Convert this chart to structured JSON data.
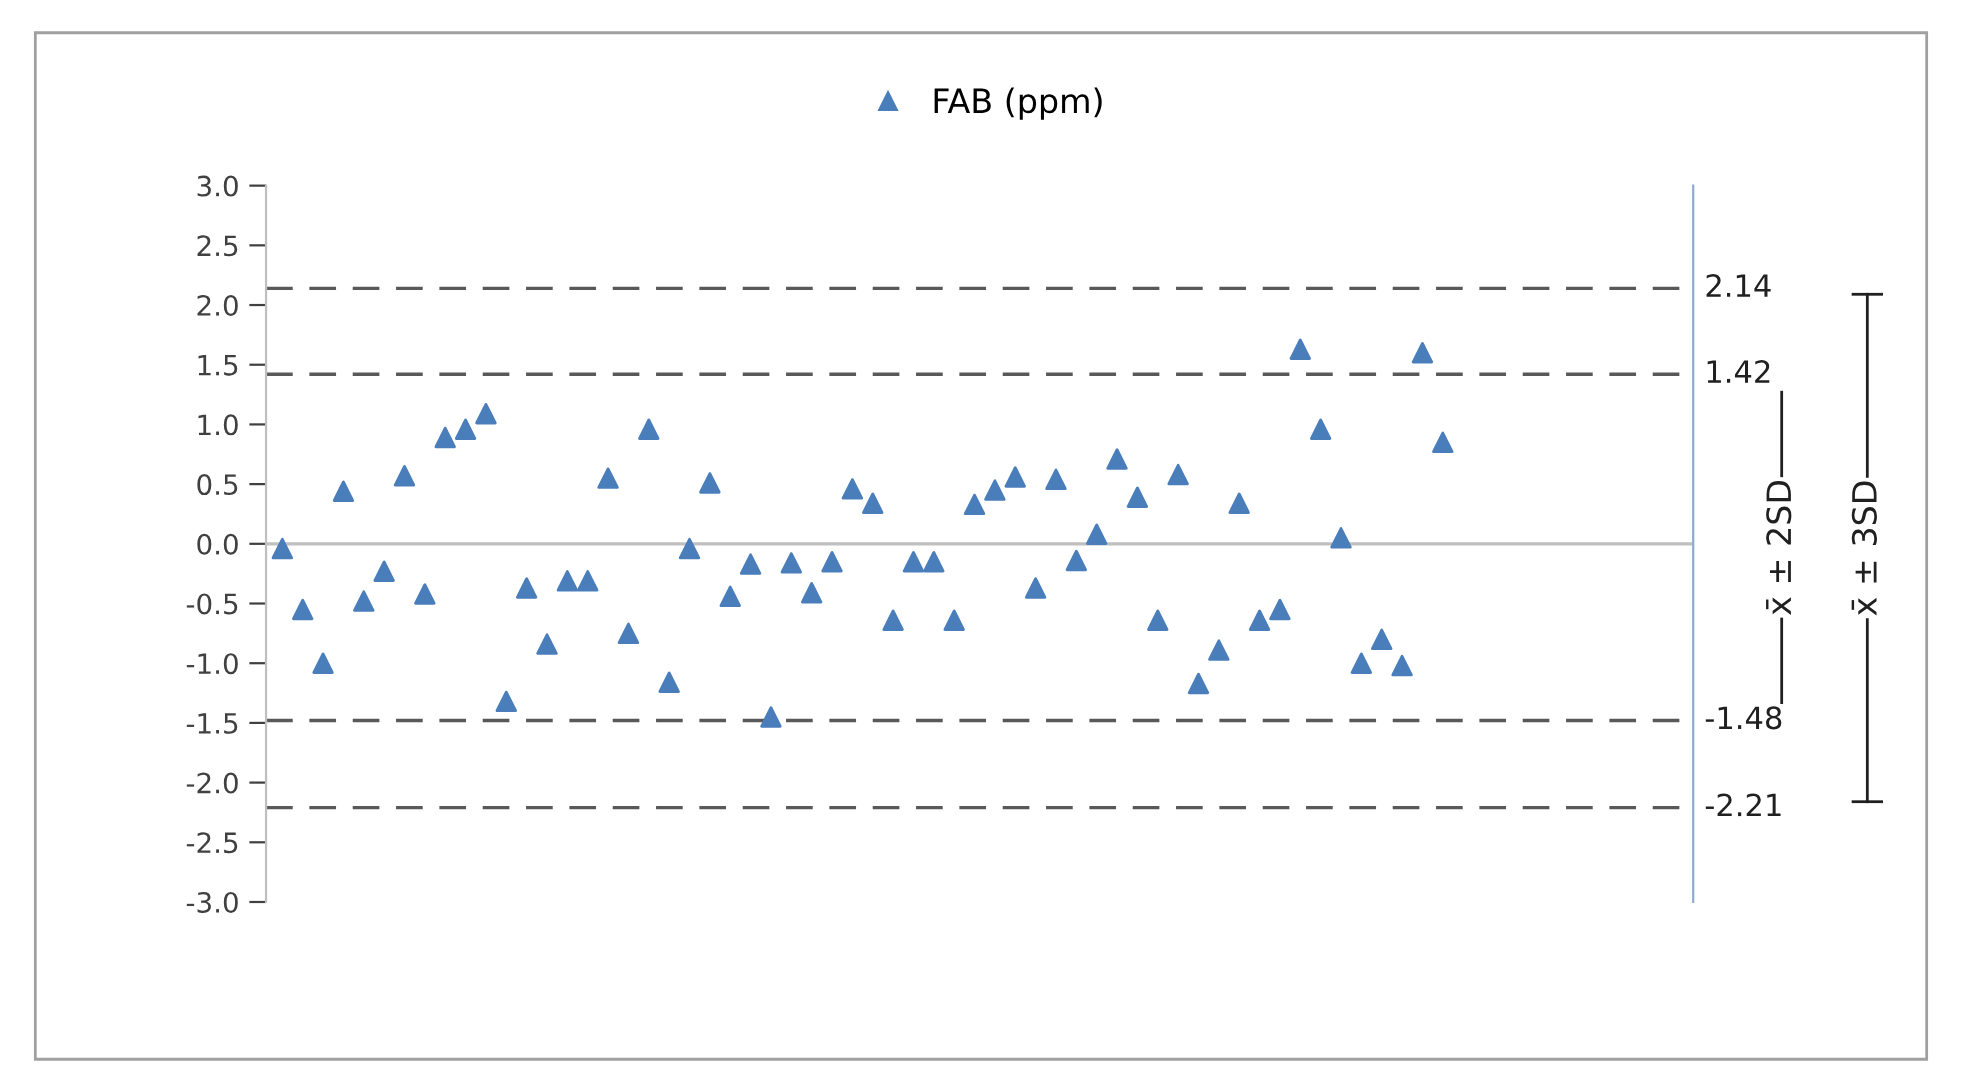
{
  "chart_data": {
    "type": "scatter",
    "categories": [
      null,
      null,
      null,
      null,
      null,
      null,
      null,
      null,
      null,
      null,
      null,
      null,
      null,
      null,
      null,
      null,
      null,
      null,
      null,
      null,
      null,
      null,
      null,
      null,
      null,
      null,
      null,
      null,
      null,
      null,
      null,
      null,
      null,
      null,
      null,
      null,
      null,
      null,
      null,
      null,
      null,
      null,
      null,
      null,
      null,
      null,
      null,
      null,
      null,
      null,
      null,
      null,
      null,
      null,
      null,
      null,
      null,
      null,
      null,
      null,
      null,
      null,
      null,
      null,
      null,
      null,
      null,
      null,
      null,
      null
    ],
    "series": [
      {
        "name": "FAB (ppm)",
        "color": "#4a7ebb",
        "values": [
          -0.04,
          -0.55,
          -1.0,
          0.44,
          -0.48,
          -0.23,
          0.57,
          -0.42,
          0.89,
          0.96,
          1.09,
          -1.32,
          -0.37,
          -0.84,
          -0.31,
          -0.31,
          0.55,
          -0.75,
          0.96,
          -1.16,
          -0.04,
          0.51,
          -0.44,
          -0.17,
          -1.45,
          -0.16,
          -0.41,
          -0.15,
          0.46,
          0.34,
          -0.64,
          -0.15,
          -0.15,
          -0.64,
          0.33,
          0.45,
          0.56,
          -0.37,
          0.54,
          -0.14,
          0.08,
          0.71,
          0.39,
          -0.64,
          0.58,
          -1.17,
          -0.89,
          0.34,
          -0.64,
          -0.55,
          1.63,
          0.96,
          0.05,
          -1.0,
          -0.8,
          -1.02,
          1.6,
          0.85,
          null,
          null,
          null,
          null,
          null,
          null,
          null,
          null,
          null,
          null,
          null,
          null
        ]
      }
    ],
    "marker": "triangle",
    "ylim": [
      -3,
      3
    ],
    "yticks": [
      {
        "value": -3,
        "label": "-3.0"
      },
      {
        "value": -2.5,
        "label": "-2.5"
      },
      {
        "value": -2,
        "label": "-2.0"
      },
      {
        "value": -1.5,
        "label": "-1.5"
      },
      {
        "value": -1,
        "label": "-1.0"
      },
      {
        "value": -0.5,
        "label": "-0.5"
      },
      {
        "value": 0,
        "label": "0.0"
      },
      {
        "value": 0.5,
        "label": "0.5"
      },
      {
        "value": 1,
        "label": "1.0"
      },
      {
        "value": 1.5,
        "label": "1.5"
      },
      {
        "value": 2,
        "label": "2.0"
      },
      {
        "value": 2.5,
        "label": "2.5"
      },
      {
        "value": 3,
        "label": "3.0"
      }
    ],
    "tick_labels": "y",
    "grid": false,
    "legend": "top",
    "ref_lines": [
      {
        "axis": "y",
        "value": 2.14,
        "label": "2.14",
        "color": "#595959",
        "line_style": "dashed"
      },
      {
        "axis": "y",
        "value": 1.42,
        "label": "1.42",
        "color": "#595959",
        "line_style": "dashed"
      },
      {
        "axis": "y",
        "value": -1.48,
        "label": "-1.48",
        "color": "#595959",
        "line_style": "dashed"
      },
      {
        "axis": "y",
        "value": -2.21,
        "label": "-2.21",
        "color": "#595959",
        "line_style": "dashed"
      },
      {
        "axis": "y",
        "value": 0,
        "color": "#c0c0c0",
        "line_style": "solid"
      }
    ],
    "annotations": [
      "x̄ ± 2SD",
      "x̄ ± 3SD"
    ]
  }
}
